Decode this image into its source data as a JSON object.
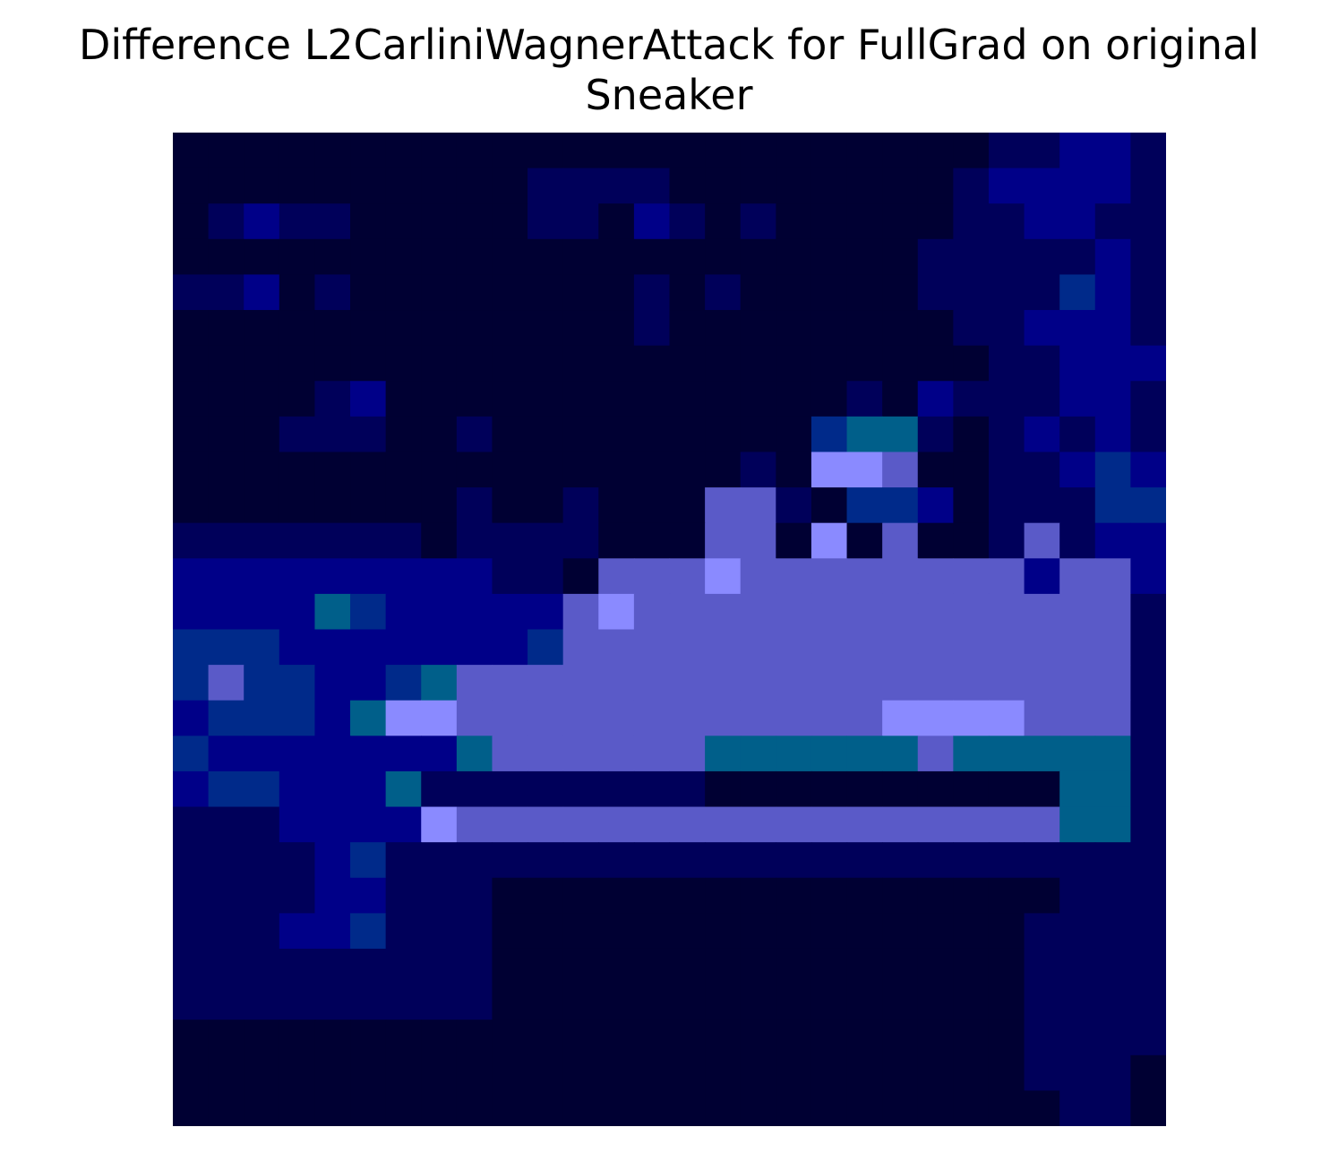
{
  "figure": {
    "title_line1": "Difference L2CarliniWagnerAttack for FullGrad on original",
    "title_line2": "Sneaker"
  },
  "chart_data": {
    "type": "heatmap",
    "title": "Difference L2CarliniWagnerAttack for FullGrad on original Sneaker",
    "rows": 28,
    "cols": 28,
    "axes": "off",
    "grid": false,
    "colorscale": [
      "#000033",
      "#00005a",
      "#000088",
      "#002a8a",
      "#005f8a",
      "#5a5ac8",
      "#8a8aff"
    ],
    "values": [
      "0000000000000000000000011221",
      "0000000000111100000000122221",
      "0121100000110210100000112211",
      "0000000000000000000001111121",
      "1120100000000101000001111321",
      "0000000000000100000000112221",
      "0000000000000000000000011222",
      "0000120000000000000102111221",
      "0001110010000000003441012121",
      "0000000000000000106650011232",
      "0000000010010005510332011133",
      "1111111011110005506050015122",
      "2222222221105556555555552552",
      "2222432222256555555555555551",
      "3332222222355555555555555551",
      "3533223455555555555555555551",
      "2333246655555555555566665551",
      "3222222245555554444445444441",
      "2332224111111110000000000441",
      "1112222655555555555555555441",
      "1111231111111111111111111111",
      "1111221110000000000000000111",
      "1112231110000000000000001111",
      "1111111110000000000000001111",
      "1111111110000000000000001111",
      "0000000000000000000000001111",
      "0000000000000000000000001110",
      "0000000000000000000000000110"
    ]
  }
}
